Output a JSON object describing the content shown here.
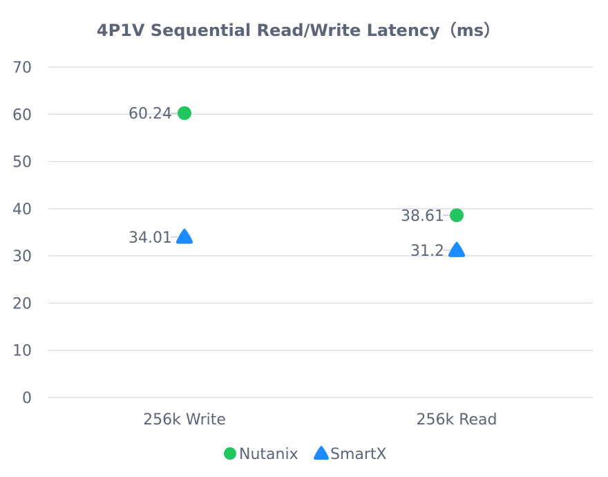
{
  "chart_data": {
    "type": "scatter",
    "title": "4P1V Sequential Read/Write Latency（ms）",
    "xlabel": "",
    "ylabel": "",
    "categories": [
      "256k Write",
      "256k Read"
    ],
    "ylim": [
      0,
      70
    ],
    "yticks": [
      0,
      10,
      20,
      30,
      40,
      50,
      60,
      70
    ],
    "grid": true,
    "legend_position": "bottom",
    "series": [
      {
        "name": "Nutanix",
        "marker": "circle",
        "color": "#22c55e",
        "values": [
          60.24,
          38.61
        ],
        "labels": [
          "60.24",
          "38.61"
        ]
      },
      {
        "name": "SmartX",
        "marker": "triangle",
        "color": "#1a8cff",
        "values": [
          34.01,
          31.2
        ],
        "labels": [
          "34.01",
          "31.2"
        ]
      }
    ]
  }
}
